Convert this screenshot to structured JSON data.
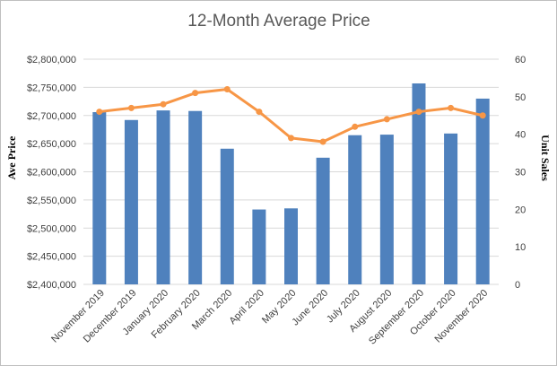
{
  "chart_data": {
    "type": "bar",
    "title": "12-Month Average Price",
    "ylabel": "Ave Price",
    "y2label": "Unit Sales",
    "categories": [
      "November 2019",
      "December 2019",
      "January 2020",
      "February 2020",
      "March 2020",
      "April 2020",
      "May 2020",
      "June 2020",
      "July 2020",
      "August 2020",
      "September 2020",
      "October 2020",
      "November 2020"
    ],
    "ylim": [
      2400000,
      2800000
    ],
    "y_ticks": [
      "$2,400,000",
      "$2,450,000",
      "$2,500,000",
      "$2,550,000",
      "$2,600,000",
      "$2,650,000",
      "$2,700,000",
      "$2,750,000",
      "$2,800,000"
    ],
    "y2lim": [
      0,
      60
    ],
    "y2_ticks": [
      "0",
      "10",
      "20",
      "30",
      "40",
      "50",
      "60"
    ],
    "grid": true,
    "series": [
      {
        "type": "bar",
        "axis": "left",
        "color": "#4f81bd",
        "values": [
          2706000,
          2692000,
          2709000,
          2708000,
          2641000,
          2533000,
          2535000,
          2625000,
          2665000,
          2666000,
          2757000,
          2668000,
          2730000
        ]
      },
      {
        "type": "line",
        "axis": "right",
        "color": "#f79646",
        "values": [
          46,
          47,
          48,
          51,
          52,
          46,
          39,
          38,
          42,
          44,
          46,
          47,
          45
        ]
      }
    ]
  }
}
